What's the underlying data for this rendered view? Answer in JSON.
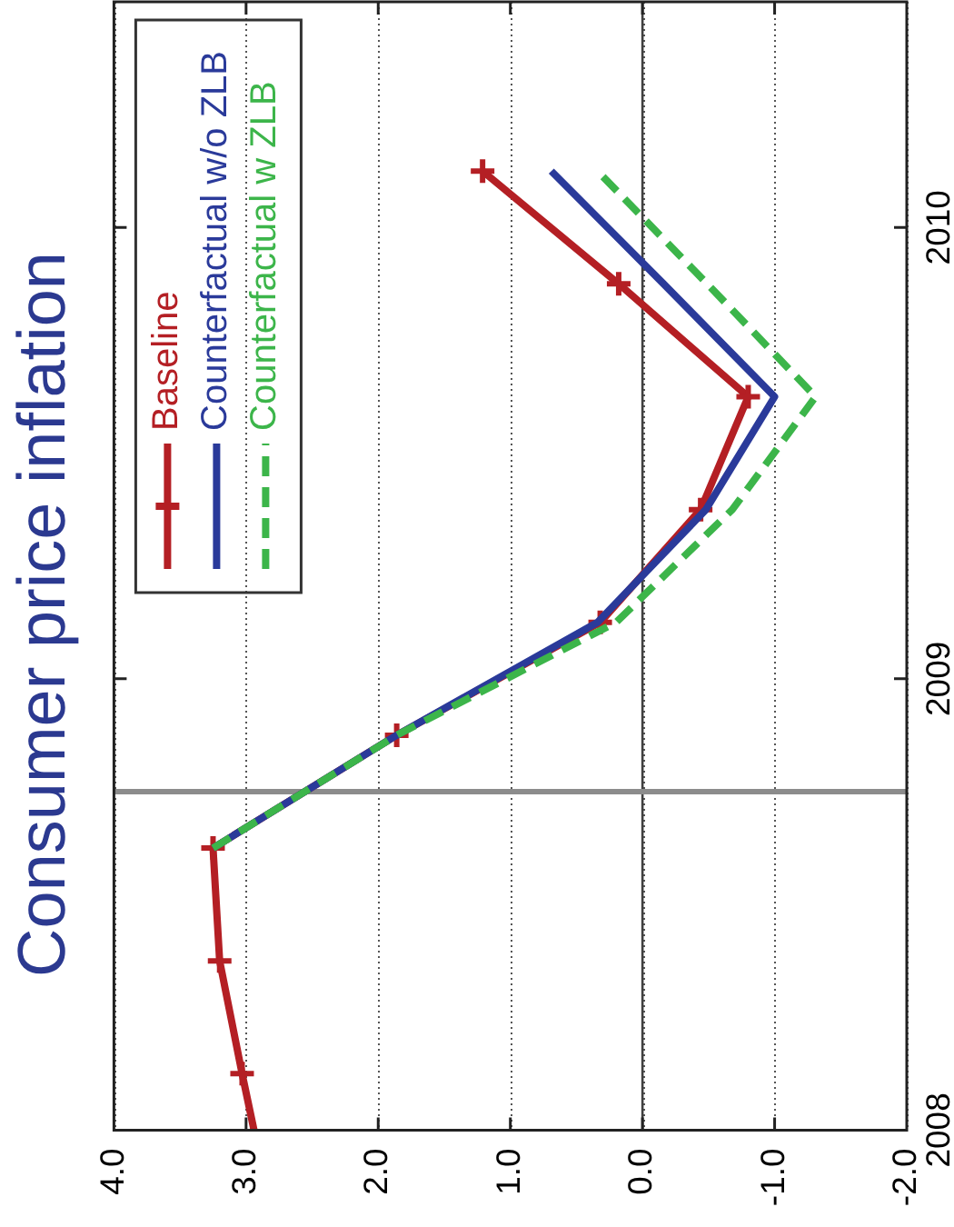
{
  "chart_data": {
    "type": "line",
    "title": "Consumer price inflation",
    "series": [
      {
        "name": "Baseline",
        "color": "#b41f24",
        "marker": "cross",
        "x": [
          2.94,
          3.03,
          3.2,
          3.25,
          1.86,
          0.32,
          -0.44,
          -0.8,
          0.18,
          1.21
        ],
        "values": [
          2008,
          2008.125,
          2008.375,
          2008.625,
          2008.875,
          2009.125,
          2009.375,
          2009.625,
          2009.875,
          2010.125
        ]
      },
      {
        "name": "Counterfactual w/o ZLB",
        "color": "#2a3a9a",
        "marker": "none",
        "x": [
          3.25,
          1.86,
          0.34,
          -0.48,
          -1.0,
          -0.16,
          0.69
        ],
        "values": [
          2008.625,
          2008.875,
          2009.125,
          2009.375,
          2009.625,
          2009.875,
          2010.125
        ]
      },
      {
        "name": "Counterfactual w ZLB",
        "color": "#3cb54a",
        "marker": "none",
        "line_style": "dashed",
        "x": [
          3.25,
          1.86,
          0.2,
          -0.68,
          -1.31,
          -0.49,
          0.34
        ],
        "values": [
          2008.625,
          2008.875,
          2009.125,
          2009.375,
          2009.625,
          2009.875,
          2010.125
        ]
      }
    ],
    "xlim": [
      4,
      -2
    ],
    "xticks": [
      {
        "value": 4,
        "label": "4.0"
      },
      {
        "value": 3,
        "label": "3.0"
      },
      {
        "value": 2,
        "label": "2.0"
      },
      {
        "value": 1,
        "label": "1.0"
      },
      {
        "value": 0,
        "label": "0.0"
      },
      {
        "value": -1,
        "label": "-1.0"
      },
      {
        "value": -2,
        "label": "-2.0"
      }
    ],
    "ylim": [
      2008,
      2010.5
    ],
    "yticks": [
      2008,
      2009,
      2010
    ],
    "grid": "x",
    "legend": "top left",
    "line_style": "solid",
    "ref_lines": [
      {
        "axis": "x",
        "value": 0,
        "color": "#404040"
      },
      {
        "axis": "y",
        "value": 2008.75,
        "color": "#8c8c8c"
      }
    ]
  }
}
